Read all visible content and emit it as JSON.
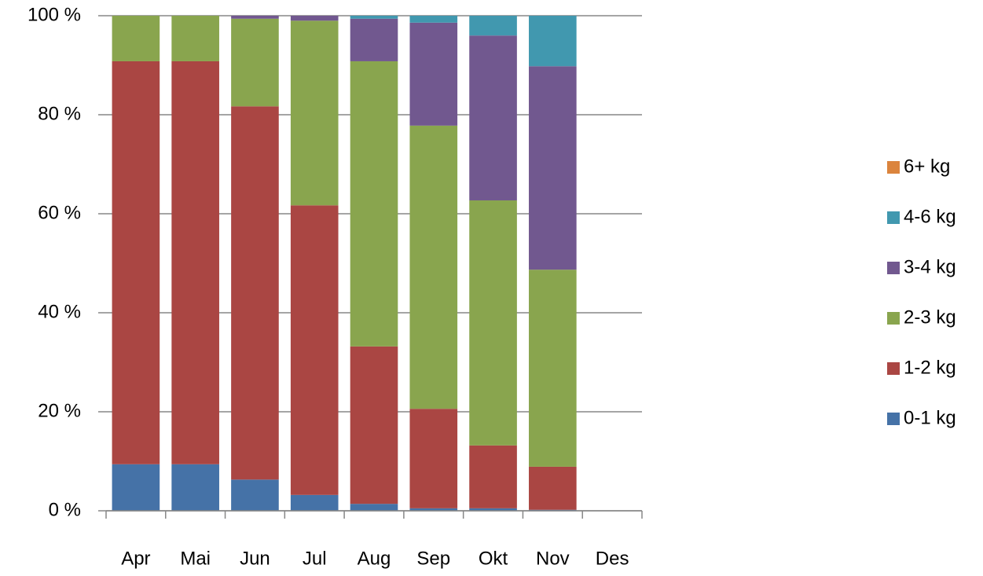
{
  "chart_data": {
    "type": "stacked_bar_100",
    "categories": [
      "Apr",
      "Mai",
      "Jun",
      "Jul",
      "Aug",
      "Sep",
      "Okt",
      "Nov",
      "Des"
    ],
    "series": [
      {
        "name": "0-1 kg",
        "color": "#4572a7",
        "values": [
          9.4,
          9.4,
          6.3,
          3.2,
          1.4,
          0.5,
          0.5,
          0.2,
          0
        ]
      },
      {
        "name": "1-2 kg",
        "color": "#aa4643",
        "values": [
          81.4,
          81.4,
          75.4,
          58.5,
          31.8,
          20.1,
          12.7,
          8.7,
          0
        ]
      },
      {
        "name": "2-3 kg",
        "color": "#89a54e",
        "values": [
          9.2,
          9.2,
          17.7,
          37.3,
          57.6,
          57.2,
          49.5,
          39.8,
          0
        ]
      },
      {
        "name": "3-4 kg",
        "color": "#71588f",
        "values": [
          0,
          0,
          0.6,
          1.0,
          8.6,
          20.8,
          33.3,
          41.1,
          0
        ]
      },
      {
        "name": "4-6 kg",
        "color": "#4198af",
        "values": [
          0,
          0,
          0,
          0,
          0.6,
          1.4,
          4.0,
          10.2,
          0
        ]
      },
      {
        "name": "6+ kg",
        "color": "#db843d",
        "values": [
          0,
          0,
          0,
          0,
          0,
          0,
          0,
          0,
          0
        ]
      }
    ],
    "ylim": [
      0,
      100
    ],
    "yticks": [
      {
        "value": 0,
        "label": "0 %"
      },
      {
        "value": 20,
        "label": "20 %"
      },
      {
        "value": 40,
        "label": "40 %"
      },
      {
        "value": 60,
        "label": "60 %"
      },
      {
        "value": 80,
        "label": "80 %"
      },
      {
        "value": 100,
        "label": "100 %"
      }
    ],
    "grid": true,
    "legend": "right"
  }
}
